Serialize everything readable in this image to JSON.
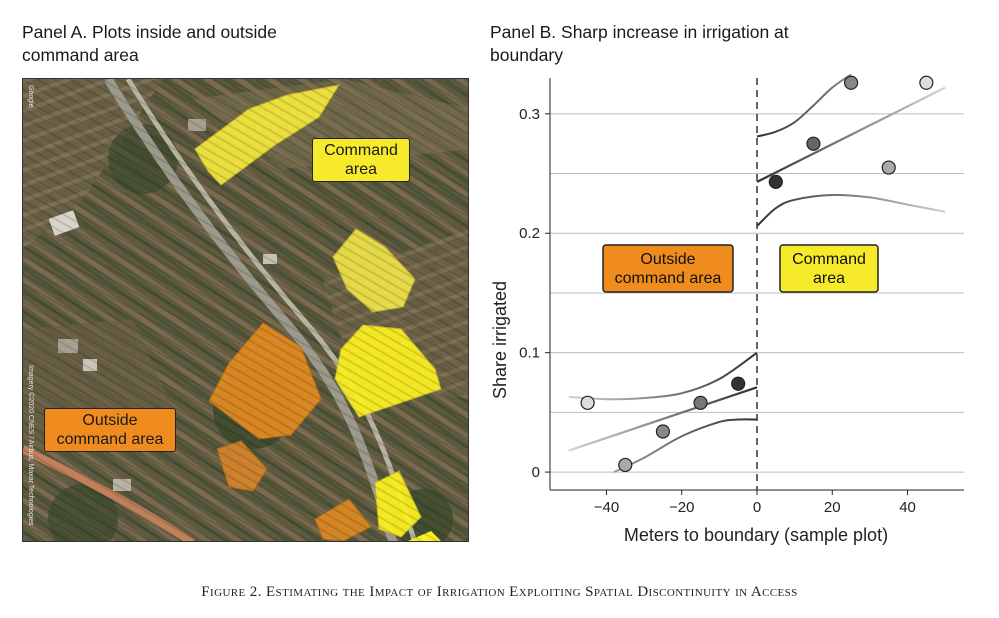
{
  "panel_a": {
    "title_line1": "Panel A. Plots inside and outside",
    "title_line2": "command area",
    "label_command_line1": "Command",
    "label_command_line2": "area",
    "label_outside_line1": "Outside",
    "label_outside_line2": "command area",
    "credit_google": "Google",
    "credit_imagery": "Imagery ©2020 CNES / Airbus, Maxar Technologies",
    "colors": {
      "command": "#f7ea2b",
      "outside": "#f08c1e"
    }
  },
  "panel_b": {
    "title_line1": "Panel B. Sharp increase in irrigation at",
    "title_line2": "boundary"
  },
  "caption": "Figure 2. Estimating the Impact of Irrigation Exploiting Spatial Discontinuity in Access",
  "chart_data": {
    "type": "scatter",
    "xlabel_main": "Meters to boundary",
    "xlabel_suffix": "(sample plot)",
    "ylabel": "Share irrigated",
    "xlim": [
      -55,
      55
    ],
    "ylim": [
      -0.015,
      0.33
    ],
    "xticks": [
      -40,
      -20,
      0,
      20,
      40
    ],
    "xtick_labels": [
      "−40",
      "−20",
      "0",
      "20",
      "40"
    ],
    "yticks": [
      0,
      0.1,
      0.2,
      0.3
    ],
    "ytick_labels": [
      "0",
      "0.1",
      "0.2",
      "0.3"
    ],
    "gridlines_y": [
      0,
      0.05,
      0.1,
      0.15,
      0.2,
      0.25,
      0.3
    ],
    "boundary_x": 0,
    "region_labels": {
      "outside_line1": "Outside",
      "outside_line2": "command area",
      "command_line1": "Command",
      "command_line2": "area"
    },
    "points": [
      {
        "x": -45,
        "y": 0.058,
        "shade": "#dddddd"
      },
      {
        "x": -35,
        "y": 0.006,
        "shade": "#aaaaaa"
      },
      {
        "x": -25,
        "y": 0.034,
        "shade": "#888888"
      },
      {
        "x": -15,
        "y": 0.058,
        "shade": "#777777"
      },
      {
        "x": -5,
        "y": 0.074,
        "shade": "#333333"
      },
      {
        "x": 5,
        "y": 0.243,
        "shade": "#333333"
      },
      {
        "x": 15,
        "y": 0.275,
        "shade": "#666666"
      },
      {
        "x": 25,
        "y": 0.326,
        "shade": "#888888"
      },
      {
        "x": 35,
        "y": 0.255,
        "shade": "#aaaaaa"
      },
      {
        "x": 45,
        "y": 0.326,
        "shade": "#dddddd"
      }
    ],
    "fit_left": {
      "x": [
        -50,
        0
      ],
      "y": [
        0.018,
        0.071
      ]
    },
    "fit_right": {
      "x": [
        0,
        50
      ],
      "y": [
        0.243,
        0.322
      ]
    },
    "ci_left_upper": {
      "x": [
        -50,
        -40,
        -30,
        -20,
        -10,
        0
      ],
      "y": [
        0.063,
        0.061,
        0.062,
        0.066,
        0.078,
        0.1
      ]
    },
    "ci_left_lower": {
      "x": [
        -38,
        -30,
        -20,
        -10,
        -5,
        0
      ],
      "y": [
        0.0,
        0.012,
        0.03,
        0.042,
        0.044,
        0.044
      ]
    },
    "ci_right_upper": {
      "x": [
        0,
        5,
        10,
        15,
        20,
        25
      ],
      "y": [
        0.281,
        0.285,
        0.293,
        0.307,
        0.322,
        0.333
      ]
    },
    "ci_right_lower": {
      "x": [
        0,
        5,
        10,
        20,
        30,
        40,
        50
      ],
      "y": [
        0.206,
        0.221,
        0.228,
        0.232,
        0.23,
        0.224,
        0.218
      ]
    }
  }
}
